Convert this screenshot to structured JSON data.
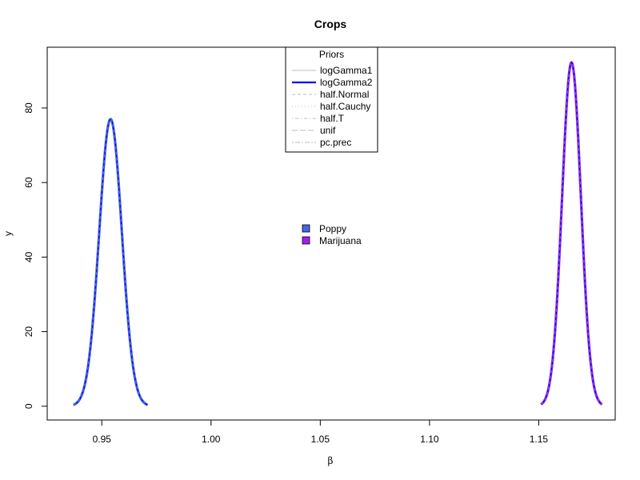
{
  "chart_data": {
    "type": "line",
    "title": "Crops",
    "xlabel": "β",
    "ylabel": "y",
    "xlim": [
      0.925,
      1.185
    ],
    "ylim": [
      -3.7,
      96.3
    ],
    "x_ticks": [
      0.95,
      1.0,
      1.05,
      1.1,
      1.15
    ],
    "x_tick_labels": [
      "0.95",
      "1.00",
      "1.05",
      "1.10",
      "1.15"
    ],
    "y_ticks": [
      0,
      20,
      40,
      60,
      80
    ],
    "y_tick_labels": [
      "0",
      "20",
      "40",
      "60",
      "80"
    ],
    "grid": false,
    "priors_legend": {
      "title": "Priors",
      "placement": "top-center",
      "entries": [
        {
          "label": "logGamma1",
          "color": "#bebebe",
          "dash": "solid",
          "bold": false
        },
        {
          "label": "logGamma2",
          "color": "#0000ff",
          "dash": "solid",
          "bold": true
        },
        {
          "label": "half.Normal",
          "color": "#bebebe",
          "dash": "dashed",
          "bold": false
        },
        {
          "label": "half.Cauchy",
          "color": "#bebebe",
          "dash": "dotted",
          "bold": false
        },
        {
          "label": "half.T",
          "color": "#bebebe",
          "dash": "dotdash",
          "bold": false
        },
        {
          "label": "unif",
          "color": "#bebebe",
          "dash": "longdash",
          "bold": false
        },
        {
          "label": "pc.prec",
          "color": "#bebebe",
          "dash": "twodash",
          "bold": false
        }
      ]
    },
    "crops_legend": {
      "placement": "center",
      "entries": [
        {
          "label": "Poppy",
          "color": "#4169e1"
        },
        {
          "label": "Marijuana",
          "color": "#a020f0"
        }
      ]
    },
    "series": [
      {
        "name": "Poppy",
        "color": "#4169e1",
        "mean": 0.954,
        "sd": 0.00518,
        "peak": 77.0,
        "x_range": [
          0.937,
          0.971
        ]
      },
      {
        "name": "Marijuana",
        "color": "#a020f0",
        "mean": 1.165,
        "sd": 0.00432,
        "peak": 92.2,
        "x_range": [
          1.151,
          1.179
        ]
      }
    ]
  }
}
